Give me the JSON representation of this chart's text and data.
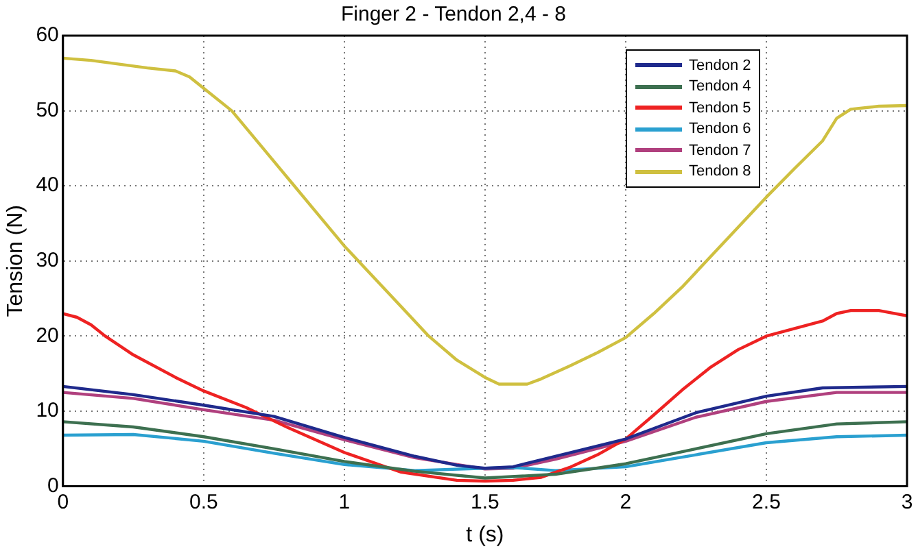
{
  "chart_data": {
    "type": "line",
    "title": "Finger 2 - Tendon 2,4 - 8",
    "xlabel": "t (s)",
    "ylabel": "Tension (N)",
    "xlim": [
      0,
      3
    ],
    "xticks": [
      0,
      0.5,
      1,
      1.5,
      2,
      2.5,
      3
    ],
    "ylim": [
      0,
      60
    ],
    "yticks": [
      0,
      10,
      20,
      30,
      40,
      50,
      60
    ],
    "grid": true,
    "legend": "top right",
    "marker": "none",
    "line_style": "solid",
    "series": [
      {
        "name": "Tendon 2",
        "color": "#1f2a8c",
        "x": [
          0,
          0.25,
          0.5,
          0.75,
          1,
          1.25,
          1.4,
          1.5,
          1.6,
          1.75,
          2,
          2.25,
          2.5,
          2.7,
          3
        ],
        "values": [
          13.3,
          12.2,
          10.8,
          9.3,
          6.5,
          4,
          2.8,
          2.4,
          2.6,
          4,
          6.3,
          9.8,
          12,
          13.1,
          13.3
        ]
      },
      {
        "name": "Tendon 4",
        "color": "#3d7050",
        "x": [
          0,
          0.25,
          0.5,
          0.75,
          1,
          1.25,
          1.5,
          1.75,
          2,
          2.25,
          2.5,
          2.75,
          3
        ],
        "values": [
          8.6,
          7.9,
          6.6,
          5,
          3.3,
          2,
          1.1,
          1.6,
          3,
          5,
          7,
          8.3,
          8.6
        ]
      },
      {
        "name": "Tendon 5",
        "color": "#ee2222",
        "x": [
          0,
          0.05,
          0.1,
          0.15,
          0.25,
          0.4,
          0.5,
          0.65,
          0.8,
          1,
          1.2,
          1.4,
          1.5,
          1.6,
          1.7,
          1.8,
          1.9,
          2,
          2.1,
          2.2,
          2.3,
          2.4,
          2.5,
          2.6,
          2.7,
          2.75,
          2.8,
          2.9,
          3
        ],
        "values": [
          23,
          22.5,
          21.5,
          20,
          17.5,
          14.5,
          12.7,
          10.5,
          7.8,
          4.5,
          1.9,
          0.8,
          0.7,
          0.8,
          1.2,
          2.5,
          4.2,
          6.3,
          9.5,
          12.8,
          15.8,
          18.2,
          20,
          21,
          22,
          23,
          23.4,
          23.4,
          22.7
        ]
      },
      {
        "name": "Tendon 6",
        "color": "#2aa0d0",
        "x": [
          0,
          0.25,
          0.5,
          0.75,
          1,
          1.25,
          1.5,
          1.6,
          1.75,
          2,
          2.25,
          2.5,
          2.75,
          3
        ],
        "values": [
          6.8,
          6.9,
          6,
          4.4,
          2.9,
          2.1,
          2.4,
          2.5,
          2.1,
          2.6,
          4.2,
          5.8,
          6.6,
          6.8
        ]
      },
      {
        "name": "Tendon 7",
        "color": "#b0407e",
        "x": [
          0,
          0.25,
          0.5,
          0.75,
          1,
          1.25,
          1.5,
          1.6,
          1.75,
          2,
          2.25,
          2.5,
          2.75,
          3
        ],
        "values": [
          12.5,
          11.7,
          10.2,
          8.8,
          6.2,
          3.8,
          2.3,
          2.4,
          3.6,
          6,
          9.2,
          11.3,
          12.5,
          12.5
        ]
      },
      {
        "name": "Tendon 8",
        "color": "#cfc040",
        "x": [
          0,
          0.1,
          0.2,
          0.3,
          0.4,
          0.45,
          0.5,
          0.6,
          0.7,
          0.8,
          0.9,
          1,
          1.1,
          1.2,
          1.3,
          1.4,
          1.5,
          1.55,
          1.65,
          1.7,
          1.8,
          1.9,
          2,
          2.1,
          2.2,
          2.3,
          2.4,
          2.5,
          2.6,
          2.7,
          2.75,
          2.8,
          2.9,
          3
        ],
        "values": [
          57,
          56.7,
          56.2,
          55.7,
          55.3,
          54.5,
          53,
          50,
          45.5,
          41,
          36.5,
          32,
          28,
          24,
          20,
          16.8,
          14.5,
          13.6,
          13.6,
          14.3,
          16,
          17.8,
          19.8,
          23,
          26.5,
          30.5,
          34.5,
          38.5,
          42.3,
          46,
          49,
          50.2,
          50.6,
          50.7
        ]
      }
    ]
  }
}
